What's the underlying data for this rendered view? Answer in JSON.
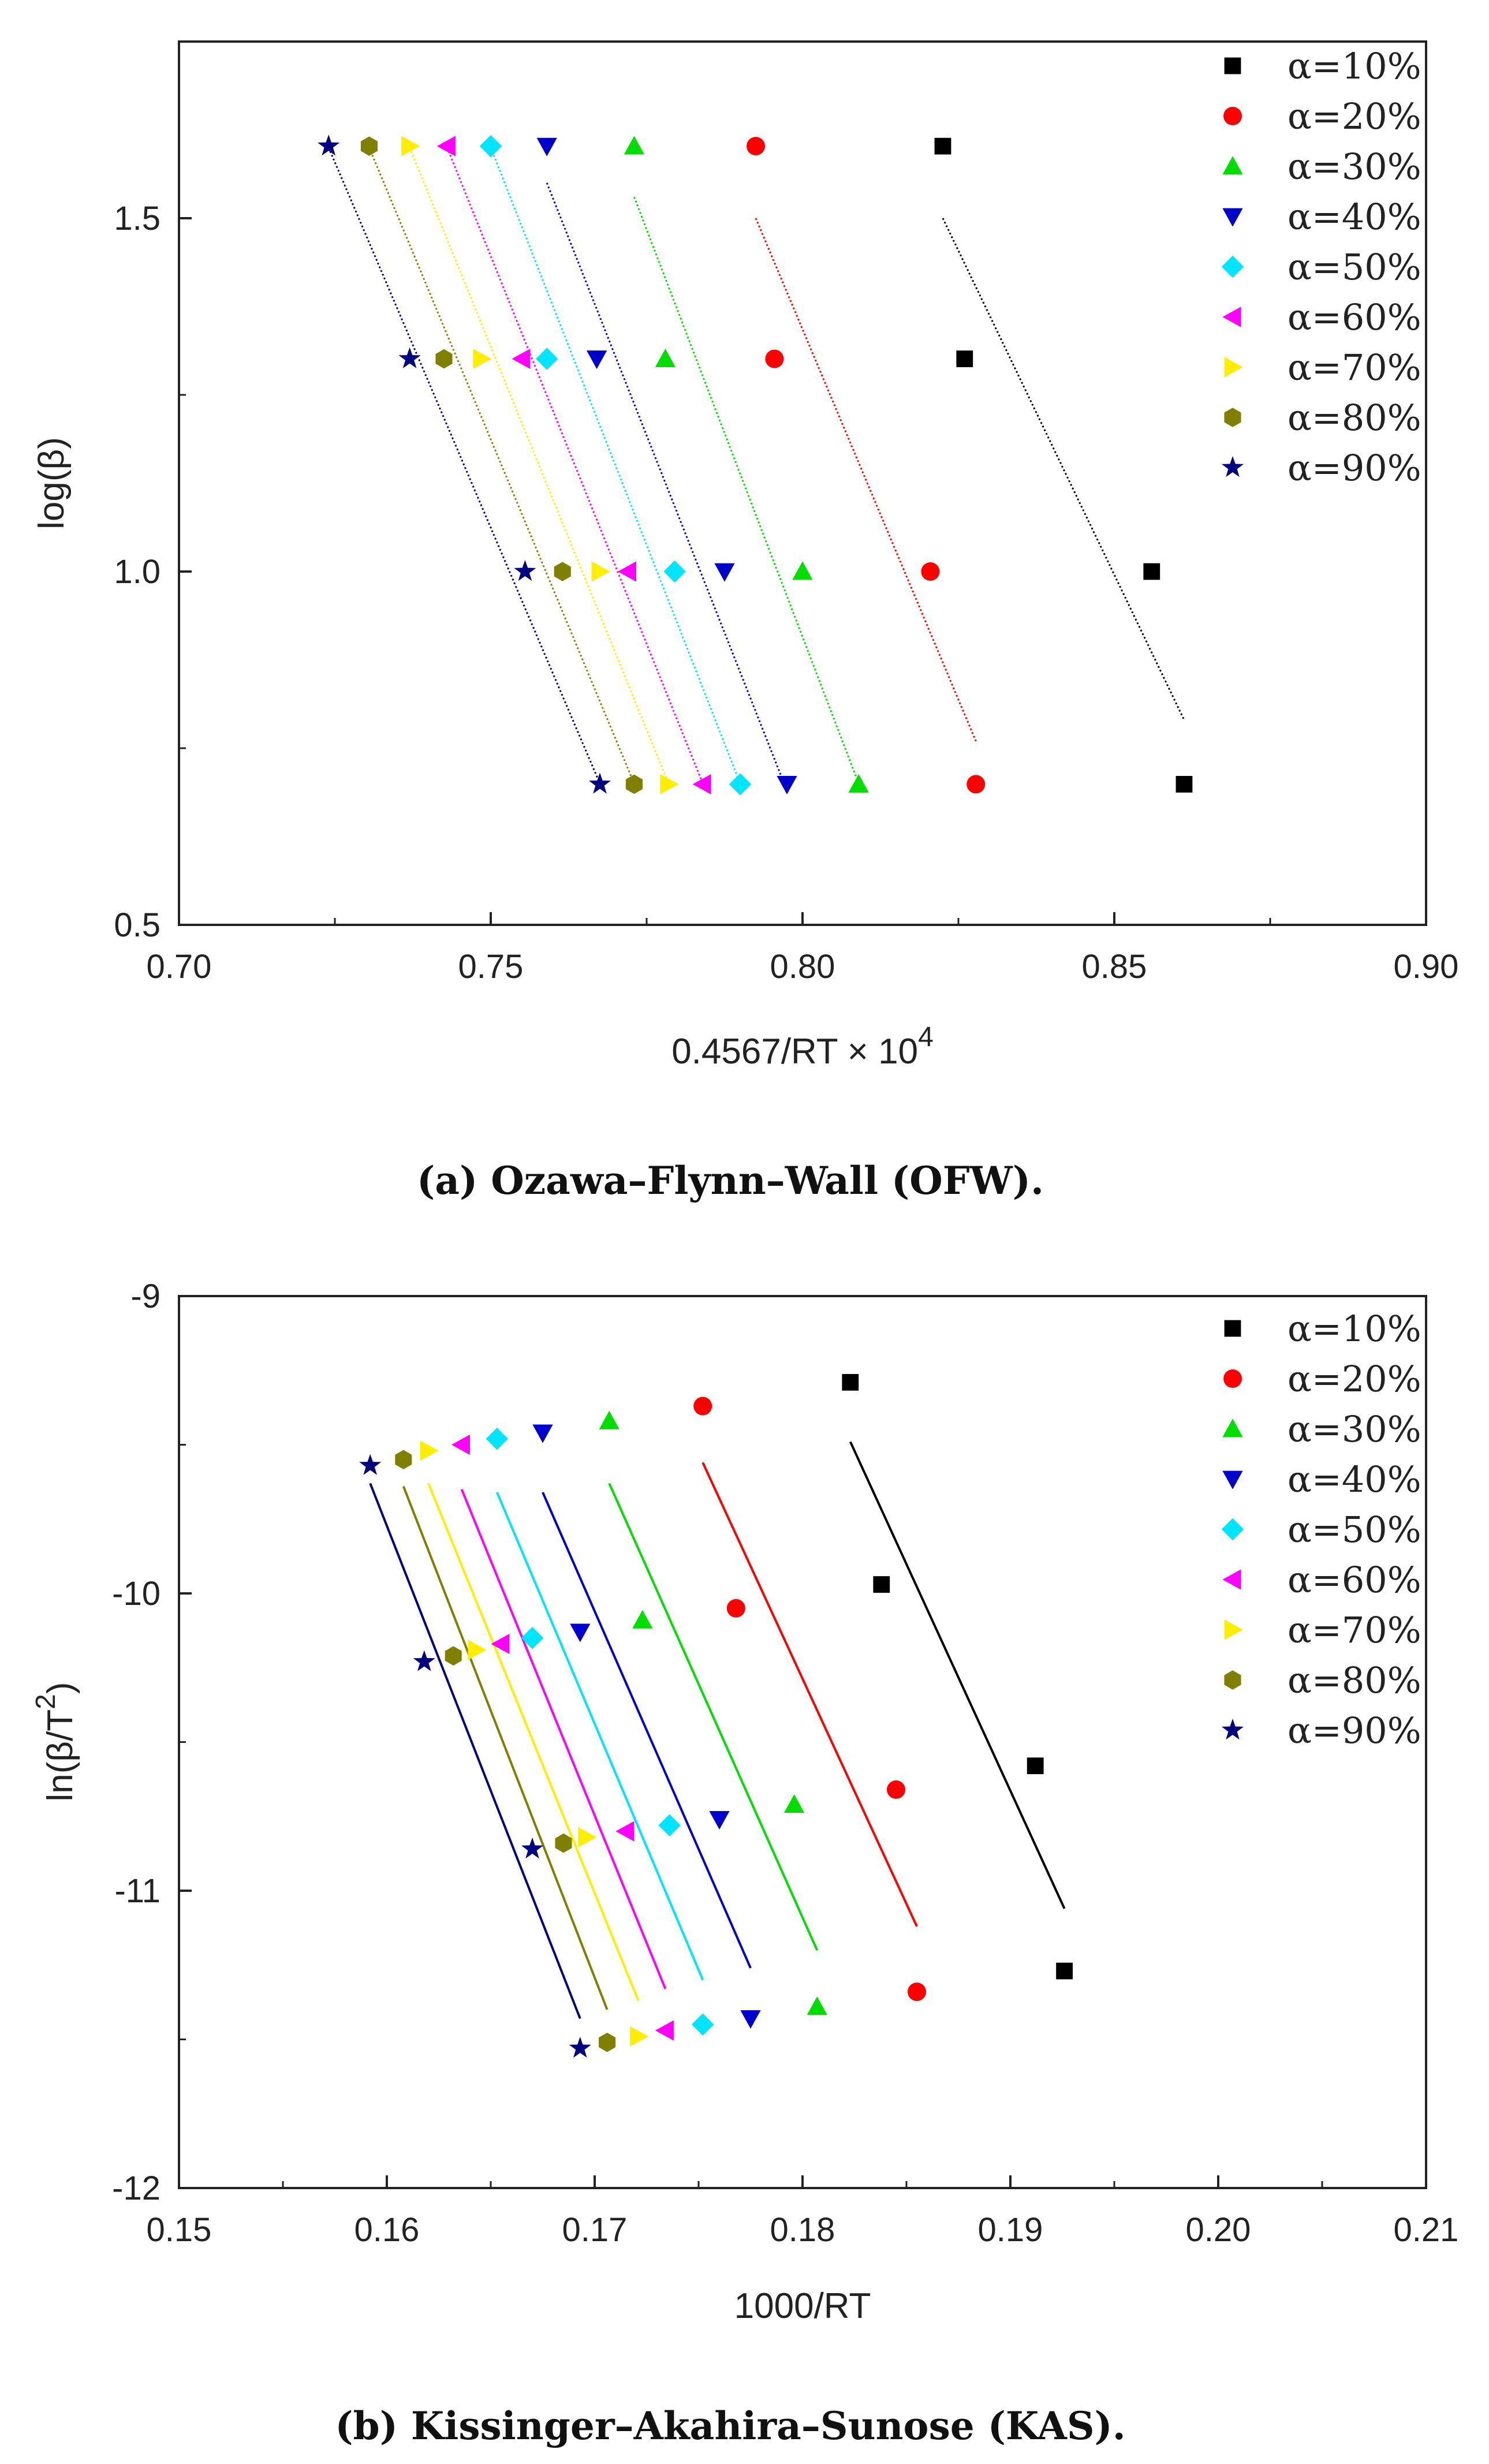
{
  "chart_data": [
    {
      "type": "scatter",
      "id": "ofw",
      "caption": "(a) Ozawa–Flynn–Wall (OFW).",
      "xlabel": "0.4567/RT × 10",
      "xlabel_exp": "4",
      "ylabel": "log(β)",
      "xlim": [
        0.7,
        0.9
      ],
      "ylim": [
        0.5,
        1.75
      ],
      "xticks": [
        "0.70",
        "0.75",
        "0.80",
        "0.85",
        "0.90"
      ],
      "yticks": [
        "0.5",
        "1.0",
        "1.5"
      ],
      "y_levels": [
        1.602,
        1.301,
        1.0,
        0.699
      ],
      "series": [
        {
          "name": "α=10%",
          "color": "#000000",
          "marker": "square",
          "x": [
            0.8225,
            0.826,
            0.856,
            0.8612
          ],
          "fit_x": [
            0.8225,
            0.8612
          ],
          "fit_y": [
            1.5,
            0.79
          ]
        },
        {
          "name": "α=20%",
          "color": "#ff0000",
          "marker": "circle",
          "x": [
            0.7925,
            0.7955,
            0.8205,
            0.8278
          ],
          "fit_x": [
            0.7925,
            0.8278
          ],
          "fit_y": [
            1.5,
            0.76
          ]
        },
        {
          "name": "α=30%",
          "color": "#00dd00",
          "marker": "triangle-up",
          "x": [
            0.773,
            0.778,
            0.8,
            0.809
          ],
          "fit_x": [
            0.773,
            0.809
          ],
          "fit_y": [
            1.53,
            0.7
          ]
        },
        {
          "name": "α=40%",
          "color": "#0000cc",
          "marker": "triangle-down",
          "x": [
            0.759,
            0.767,
            0.7875,
            0.7975
          ],
          "fit_x": [
            0.759,
            0.7975
          ],
          "fit_y": [
            1.55,
            0.69
          ]
        },
        {
          "name": "α=50%",
          "color": "#00e5ff",
          "marker": "diamond",
          "x": [
            0.75,
            0.759,
            0.7795,
            0.79
          ],
          "fit_x": [
            0.75,
            0.79
          ],
          "fit_y": [
            1.6,
            0.7
          ]
        },
        {
          "name": "α=60%",
          "color": "#ff00ff",
          "marker": "triangle-left",
          "x": [
            0.743,
            0.755,
            0.772,
            0.784
          ],
          "fit_x": [
            0.743,
            0.784
          ],
          "fit_y": [
            1.6,
            0.7
          ]
        },
        {
          "name": "α=70%",
          "color": "#ffee00",
          "marker": "triangle-right",
          "x": [
            0.737,
            0.7485,
            0.7675,
            0.7785
          ],
          "fit_x": [
            0.737,
            0.7785
          ],
          "fit_y": [
            1.6,
            0.7
          ]
        },
        {
          "name": "α=80%",
          "color": "#808000",
          "marker": "hexagon",
          "x": [
            0.7305,
            0.7425,
            0.7615,
            0.773
          ],
          "fit_x": [
            0.7305,
            0.773
          ],
          "fit_y": [
            1.6,
            0.7
          ]
        },
        {
          "name": "α=90%",
          "color": "#000080",
          "marker": "star",
          "x": [
            0.724,
            0.737,
            0.7555,
            0.7675
          ],
          "fit_x": [
            0.724,
            0.7675
          ],
          "fit_y": [
            1.6,
            0.7
          ]
        }
      ]
    },
    {
      "type": "scatter",
      "id": "kas",
      "caption": "(b) Kissinger–Akahira–Sunose (KAS).",
      "xlabel": "1000/RT",
      "ylabel": "ln(β/T",
      "ylabel_exp": "2",
      "ylabel_tail": ")",
      "xlim": [
        0.15,
        0.21
      ],
      "ylim": [
        -12,
        -9
      ],
      "xticks": [
        "0.15",
        "0.16",
        "0.17",
        "0.18",
        "0.19",
        "0.20",
        "0.21"
      ],
      "yticks": [
        "-12",
        "-11",
        "-10",
        "-9"
      ],
      "series": [
        {
          "name": "α=10%",
          "color": "#000000",
          "marker": "square",
          "x": [
            0.1823,
            0.1838,
            0.1912,
            0.1926
          ],
          "y": [
            -9.29,
            -9.97,
            -10.58,
            -11.27
          ],
          "fit_x": [
            0.1823,
            0.1926
          ],
          "fit_y": [
            -9.49,
            -11.06
          ]
        },
        {
          "name": "α=20%",
          "color": "#ff0000",
          "marker": "circle",
          "x": [
            0.1752,
            0.1768,
            0.1845,
            0.1855
          ],
          "y": [
            -9.37,
            -10.05,
            -10.66,
            -11.34
          ],
          "fit_x": [
            0.1752,
            0.1855
          ],
          "fit_y": [
            -9.56,
            -11.12
          ]
        },
        {
          "name": "α=30%",
          "color": "#00dd00",
          "marker": "triangle-up",
          "x": [
            0.1707,
            0.1723,
            0.1796,
            0.1807
          ],
          "y": [
            -9.42,
            -10.09,
            -10.71,
            -11.39
          ],
          "fit_x": [
            0.1707,
            0.1807
          ],
          "fit_y": [
            -9.63,
            -11.2
          ]
        },
        {
          "name": "α=40%",
          "color": "#0000cc",
          "marker": "triangle-down",
          "x": [
            0.1675,
            0.1693,
            0.176,
            0.1775
          ],
          "y": [
            -9.46,
            -10.13,
            -10.76,
            -11.43
          ],
          "fit_x": [
            0.1675,
            0.1775
          ],
          "fit_y": [
            -9.66,
            -11.26
          ]
        },
        {
          "name": "α=50%",
          "color": "#00e5ff",
          "marker": "diamond",
          "x": [
            0.1653,
            0.167,
            0.1736,
            0.1752
          ],
          "y": [
            -9.48,
            -10.15,
            -10.78,
            -11.45
          ],
          "fit_x": [
            0.1653,
            0.1752
          ],
          "fit_y": [
            -9.66,
            -11.3
          ]
        },
        {
          "name": "α=60%",
          "color": "#ff00ff",
          "marker": "triangle-left",
          "x": [
            0.1636,
            0.1655,
            0.1715,
            0.1734
          ],
          "y": [
            -9.5,
            -10.17,
            -10.8,
            -11.47
          ],
          "fit_x": [
            0.1636,
            0.1734
          ],
          "fit_y": [
            -9.65,
            -11.33
          ]
        },
        {
          "name": "α=70%",
          "color": "#ffee00",
          "marker": "triangle-right",
          "x": [
            0.162,
            0.1643,
            0.1696,
            0.1721
          ],
          "y": [
            -9.52,
            -10.19,
            -10.82,
            -11.49
          ],
          "fit_x": [
            0.162,
            0.1721
          ],
          "fit_y": [
            -9.63,
            -11.37
          ]
        },
        {
          "name": "α=80%",
          "color": "#808000",
          "marker": "hexagon",
          "x": [
            0.1608,
            0.1632,
            0.1685,
            0.1706
          ],
          "y": [
            -9.55,
            -10.21,
            -10.84,
            -11.51
          ],
          "fit_x": [
            0.1608,
            0.1706
          ],
          "fit_y": [
            -9.64,
            -11.4
          ]
        },
        {
          "name": "α=90%",
          "color": "#000080",
          "marker": "star",
          "x": [
            0.1592,
            0.1618,
            0.167,
            0.1693
          ],
          "y": [
            -9.57,
            -10.23,
            -10.86,
            -11.53
          ],
          "fit_x": [
            0.1592,
            0.1693
          ],
          "fit_y": [
            -9.63,
            -11.43
          ]
        }
      ]
    }
  ]
}
